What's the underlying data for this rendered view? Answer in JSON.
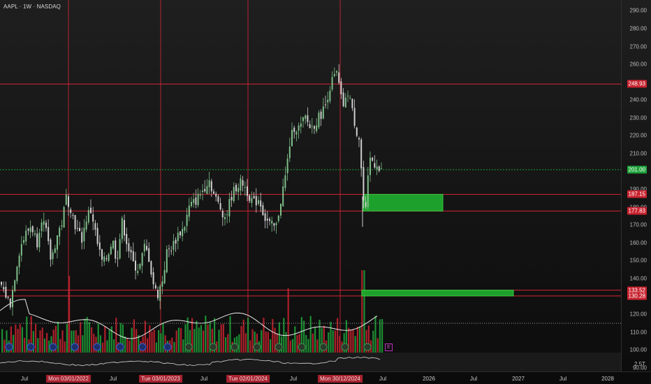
{
  "title": "AAPL · 1W · NASDAQ",
  "price_ticks": [
    "290.00",
    "280.00",
    "270.00",
    "260.00",
    "250.00",
    "240.00",
    "230.00",
    "220.00",
    "210.00",
    "200.00",
    "190.00",
    "180.00",
    "170.00",
    "160.00",
    "150.00",
    "140.00",
    "130.00",
    "120.00",
    "110.00",
    "100.00",
    "90.00"
  ],
  "price_labels": [
    {
      "text": "248.93",
      "color": "#c8232f"
    },
    {
      "text": "201.00",
      "color": "#1ea33a"
    },
    {
      "text": "187.15",
      "color": "#c8232f"
    },
    {
      "text": "177.83",
      "color": "#c8232f"
    },
    {
      "text": "133.52",
      "color": "#c8232f"
    },
    {
      "text": "130.28",
      "color": "#c8232f"
    }
  ],
  "time_labels": [
    {
      "text": "Jul",
      "highlight": false
    },
    {
      "text": "Mon 03/01/2022",
      "highlight": true
    },
    {
      "text": "Jul",
      "highlight": false
    },
    {
      "text": "Tue 03/01/2023",
      "highlight": true
    },
    {
      "text": "Jul",
      "highlight": false
    },
    {
      "text": "Tue 02/01/2024",
      "highlight": true
    },
    {
      "text": "Jul",
      "highlight": false
    },
    {
      "text": "Mon 30/12/2024",
      "highlight": true
    },
    {
      "text": "Jul",
      "highlight": false
    },
    {
      "text": "2026",
      "highlight": false
    },
    {
      "text": "Jul",
      "highlight": false
    },
    {
      "text": "2027",
      "highlight": false
    },
    {
      "text": "Jul",
      "highlight": false
    },
    {
      "text": "2028",
      "highlight": false
    }
  ],
  "indicator_scale": "2.5T",
  "earnings_marker": "E",
  "colors": {
    "up": "#1ea33a",
    "down": "#c8232f",
    "zone": "#1fa82e",
    "gridline": "#d32535"
  },
  "chart_data": {
    "type": "candlestick",
    "title": "AAPL · 1W · NASDAQ",
    "ylim": [
      88,
      296
    ],
    "x_labels": [
      "Jul",
      "Mon 03/01/2022",
      "Jul",
      "Tue 03/01/2023",
      "Jul",
      "Tue 02/01/2024",
      "Jul",
      "Mon 30/12/2024",
      "Jul",
      "2026",
      "Jul",
      "2027",
      "Jul",
      "2028"
    ],
    "price_path": [
      [
        0,
        137
      ],
      [
        8,
        130
      ],
      [
        14,
        126
      ],
      [
        22,
        146
      ],
      [
        28,
        158
      ],
      [
        36,
        165
      ],
      [
        44,
        170
      ],
      [
        52,
        160
      ],
      [
        58,
        175
      ],
      [
        64,
        168
      ],
      [
        72,
        150
      ],
      [
        80,
        163
      ],
      [
        88,
        172
      ],
      [
        94,
        186
      ],
      [
        100,
        180
      ],
      [
        108,
        168
      ],
      [
        116,
        162
      ],
      [
        124,
        176
      ],
      [
        130,
        178
      ],
      [
        138,
        160
      ],
      [
        146,
        148
      ],
      [
        152,
        152
      ],
      [
        160,
        162
      ],
      [
        166,
        150
      ],
      [
        174,
        172
      ],
      [
        182,
        158
      ],
      [
        190,
        148
      ],
      [
        198,
        145
      ],
      [
        206,
        158
      ],
      [
        212,
        152
      ],
      [
        218,
        138
      ],
      [
        224,
        130
      ],
      [
        232,
        140
      ],
      [
        238,
        155
      ],
      [
        246,
        158
      ],
      [
        254,
        165
      ],
      [
        262,
        168
      ],
      [
        270,
        180
      ],
      [
        280,
        184
      ],
      [
        290,
        190
      ],
      [
        298,
        196
      ],
      [
        306,
        186
      ],
      [
        314,
        180
      ],
      [
        322,
        174
      ],
      [
        330,
        186
      ],
      [
        338,
        192
      ],
      [
        346,
        194
      ],
      [
        354,
        188
      ],
      [
        362,
        182
      ],
      [
        370,
        185
      ],
      [
        378,
        174
      ],
      [
        386,
        170
      ],
      [
        394,
        168
      ],
      [
        400,
        182
      ],
      [
        408,
        198
      ],
      [
        414,
        216
      ],
      [
        420,
        225
      ],
      [
        428,
        224
      ],
      [
        436,
        230
      ],
      [
        444,
        224
      ],
      [
        452,
        228
      ],
      [
        458,
        232
      ],
      [
        464,
        236
      ],
      [
        470,
        246
      ],
      [
        476,
        252
      ],
      [
        482,
        255
      ],
      [
        486,
        242
      ],
      [
        492,
        236
      ],
      [
        498,
        246
      ],
      [
        504,
        232
      ],
      [
        510,
        222
      ],
      [
        514,
        218
      ],
      [
        518,
        188
      ],
      [
        522,
        174
      ],
      [
        526,
        196
      ],
      [
        530,
        210
      ],
      [
        534,
        203
      ],
      [
        538,
        206
      ],
      [
        542,
        200
      ]
    ],
    "horizontal_levels": [
      248.93,
      187.15,
      177.83,
      133.52,
      130.28
    ],
    "current_price": 201.0,
    "zones": [
      [
        177.83,
        187.15
      ],
      [
        130.28,
        133.52
      ]
    ]
  }
}
